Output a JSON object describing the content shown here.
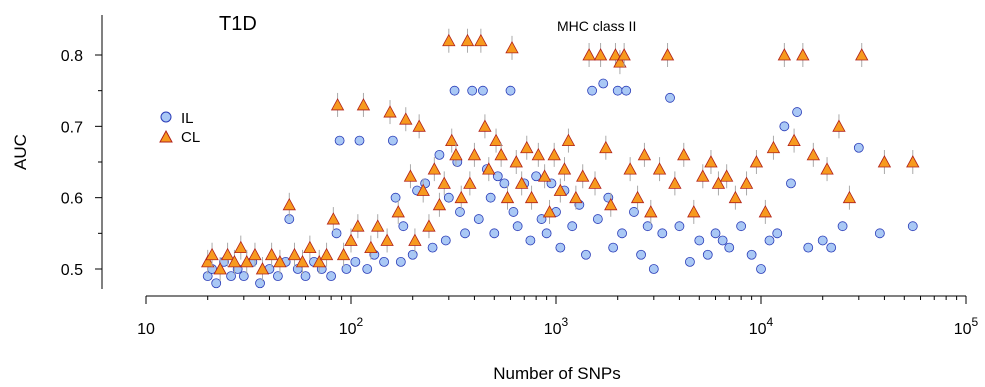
{
  "chart_data": {
    "type": "scatter",
    "title": "T1D",
    "xlabel": "Number of SNPs",
    "ylabel": "AUC",
    "x_scale": "log",
    "xlim": [
      10,
      100000
    ],
    "ylim": [
      0.47,
      0.85
    ],
    "x_ticks": [
      {
        "value": 10,
        "base": "10",
        "exp": ""
      },
      {
        "value": 100,
        "base": "10",
        "exp": "2"
      },
      {
        "value": 1000,
        "base": "10",
        "exp": "3"
      },
      {
        "value": 10000,
        "base": "10",
        "exp": "4"
      },
      {
        "value": 100000,
        "base": "10",
        "exp": "5"
      }
    ],
    "y_ticks": [
      {
        "value": 0.5,
        "label": "0.5"
      },
      {
        "value": 0.6,
        "label": "0.6"
      },
      {
        "value": 0.7,
        "label": "0.7"
      },
      {
        "value": 0.8,
        "label": "0.8"
      }
    ],
    "annotation": {
      "text": "MHC class II",
      "color": "#e8302a",
      "x": 1600,
      "y": 0.815
    },
    "legend": {
      "placement": "left"
    },
    "grid": false,
    "series": [
      {
        "name": "IL",
        "marker": "circle",
        "fill": "#a9c8f5",
        "stroke": "#2a3cb8",
        "points": [
          [
            20,
            0.49
          ],
          [
            21,
            0.5
          ],
          [
            22,
            0.48
          ],
          [
            24,
            0.51
          ],
          [
            26,
            0.49
          ],
          [
            28,
            0.5
          ],
          [
            30,
            0.49
          ],
          [
            33,
            0.51
          ],
          [
            36,
            0.48
          ],
          [
            40,
            0.5
          ],
          [
            44,
            0.49
          ],
          [
            48,
            0.51
          ],
          [
            50,
            0.57
          ],
          [
            55,
            0.5
          ],
          [
            60,
            0.49
          ],
          [
            66,
            0.51
          ],
          [
            72,
            0.5
          ],
          [
            80,
            0.49
          ],
          [
            85,
            0.55
          ],
          [
            88,
            0.68
          ],
          [
            95,
            0.5
          ],
          [
            105,
            0.51
          ],
          [
            110,
            0.68
          ],
          [
            120,
            0.5
          ],
          [
            130,
            0.52
          ],
          [
            145,
            0.51
          ],
          [
            160,
            0.68
          ],
          [
            165,
            0.6
          ],
          [
            175,
            0.51
          ],
          [
            180,
            0.56
          ],
          [
            200,
            0.52
          ],
          [
            210,
            0.61
          ],
          [
            230,
            0.62
          ],
          [
            250,
            0.53
          ],
          [
            270,
            0.66
          ],
          [
            290,
            0.54
          ],
          [
            300,
            0.6
          ],
          [
            320,
            0.75
          ],
          [
            330,
            0.65
          ],
          [
            340,
            0.58
          ],
          [
            360,
            0.55
          ],
          [
            390,
            0.75
          ],
          [
            420,
            0.57
          ],
          [
            440,
            0.75
          ],
          [
            460,
            0.64
          ],
          [
            480,
            0.6
          ],
          [
            500,
            0.55
          ],
          [
            520,
            0.63
          ],
          [
            560,
            0.62
          ],
          [
            600,
            0.75
          ],
          [
            620,
            0.58
          ],
          [
            650,
            0.56
          ],
          [
            700,
            0.62
          ],
          [
            750,
            0.54
          ],
          [
            800,
            0.63
          ],
          [
            850,
            0.57
          ],
          [
            900,
            0.55
          ],
          [
            950,
            0.62
          ],
          [
            1000,
            0.58
          ],
          [
            1050,
            0.53
          ],
          [
            1100,
            0.61
          ],
          [
            1200,
            0.56
          ],
          [
            1300,
            0.59
          ],
          [
            1400,
            0.52
          ],
          [
            1500,
            0.75
          ],
          [
            1600,
            0.57
          ],
          [
            1700,
            0.76
          ],
          [
            1800,
            0.6
          ],
          [
            1900,
            0.53
          ],
          [
            2000,
            0.75
          ],
          [
            2100,
            0.55
          ],
          [
            2200,
            0.75
          ],
          [
            2400,
            0.58
          ],
          [
            2600,
            0.52
          ],
          [
            2800,
            0.56
          ],
          [
            3000,
            0.5
          ],
          [
            3300,
            0.55
          ],
          [
            3600,
            0.74
          ],
          [
            4000,
            0.56
          ],
          [
            4500,
            0.51
          ],
          [
            5000,
            0.54
          ],
          [
            5500,
            0.52
          ],
          [
            6000,
            0.55
          ],
          [
            6500,
            0.54
          ],
          [
            7000,
            0.53
          ],
          [
            8000,
            0.56
          ],
          [
            9000,
            0.52
          ],
          [
            10000,
            0.5
          ],
          [
            11000,
            0.54
          ],
          [
            12000,
            0.55
          ],
          [
            13000,
            0.7
          ],
          [
            14000,
            0.62
          ],
          [
            15000,
            0.72
          ],
          [
            17000,
            0.53
          ],
          [
            20000,
            0.54
          ],
          [
            22000,
            0.53
          ],
          [
            25000,
            0.56
          ],
          [
            30000,
            0.67
          ],
          [
            38000,
            0.55
          ],
          [
            55000,
            0.56
          ]
        ]
      },
      {
        "name": "CL",
        "marker": "triangle",
        "fill": "#f79a1e",
        "stroke": "#b0201a",
        "points": [
          [
            20,
            0.51
          ],
          [
            21,
            0.52
          ],
          [
            23,
            0.5
          ],
          [
            25,
            0.52
          ],
          [
            27,
            0.51
          ],
          [
            29,
            0.53
          ],
          [
            31,
            0.51
          ],
          [
            34,
            0.52
          ],
          [
            37,
            0.5
          ],
          [
            41,
            0.52
          ],
          [
            45,
            0.51
          ],
          [
            50,
            0.59
          ],
          [
            53,
            0.52
          ],
          [
            58,
            0.51
          ],
          [
            63,
            0.53
          ],
          [
            70,
            0.51
          ],
          [
            76,
            0.52
          ],
          [
            82,
            0.57
          ],
          [
            86,
            0.73
          ],
          [
            92,
            0.52
          ],
          [
            100,
            0.54
          ],
          [
            108,
            0.56
          ],
          [
            115,
            0.73
          ],
          [
            125,
            0.53
          ],
          [
            135,
            0.56
          ],
          [
            150,
            0.54
          ],
          [
            155,
            0.72
          ],
          [
            170,
            0.58
          ],
          [
            185,
            0.71
          ],
          [
            195,
            0.63
          ],
          [
            205,
            0.54
          ],
          [
            215,
            0.7
          ],
          [
            225,
            0.61
          ],
          [
            240,
            0.56
          ],
          [
            255,
            0.64
          ],
          [
            270,
            0.59
          ],
          [
            285,
            0.62
          ],
          [
            300,
            0.82
          ],
          [
            310,
            0.68
          ],
          [
            325,
            0.66
          ],
          [
            345,
            0.6
          ],
          [
            370,
            0.82
          ],
          [
            380,
            0.62
          ],
          [
            400,
            0.66
          ],
          [
            430,
            0.82
          ],
          [
            450,
            0.7
          ],
          [
            470,
            0.64
          ],
          [
            510,
            0.68
          ],
          [
            540,
            0.66
          ],
          [
            580,
            0.6
          ],
          [
            610,
            0.81
          ],
          [
            640,
            0.65
          ],
          [
            680,
            0.62
          ],
          [
            720,
            0.67
          ],
          [
            760,
            0.6
          ],
          [
            820,
            0.66
          ],
          [
            880,
            0.63
          ],
          [
            930,
            0.58
          ],
          [
            980,
            0.66
          ],
          [
            1050,
            0.61
          ],
          [
            1100,
            0.64
          ],
          [
            1150,
            0.68
          ],
          [
            1250,
            0.6
          ],
          [
            1350,
            0.63
          ],
          [
            1450,
            0.8
          ],
          [
            1550,
            0.62
          ],
          [
            1650,
            0.8
          ],
          [
            1750,
            0.67
          ],
          [
            1850,
            0.59
          ],
          [
            1950,
            0.8
          ],
          [
            2050,
            0.79
          ],
          [
            2150,
            0.8
          ],
          [
            2300,
            0.64
          ],
          [
            2500,
            0.6
          ],
          [
            2700,
            0.66
          ],
          [
            2900,
            0.58
          ],
          [
            3200,
            0.64
          ],
          [
            3500,
            0.8
          ],
          [
            3800,
            0.62
          ],
          [
            4200,
            0.66
          ],
          [
            4700,
            0.58
          ],
          [
            5200,
            0.63
          ],
          [
            5700,
            0.65
          ],
          [
            6200,
            0.62
          ],
          [
            6800,
            0.63
          ],
          [
            7500,
            0.6
          ],
          [
            8500,
            0.62
          ],
          [
            9500,
            0.65
          ],
          [
            10500,
            0.58
          ],
          [
            11500,
            0.67
          ],
          [
            13000,
            0.8
          ],
          [
            14500,
            0.68
          ],
          [
            16000,
            0.8
          ],
          [
            18000,
            0.66
          ],
          [
            21000,
            0.64
          ],
          [
            24000,
            0.7
          ],
          [
            27000,
            0.6
          ],
          [
            31000,
            0.8
          ],
          [
            40000,
            0.65
          ],
          [
            55000,
            0.65
          ]
        ]
      }
    ]
  }
}
